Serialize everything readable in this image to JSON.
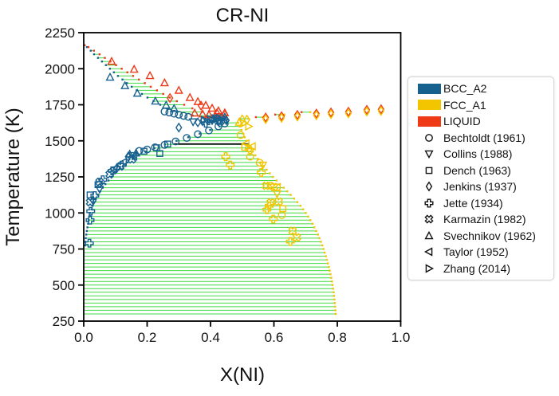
{
  "chart_data": {
    "type": "scatter",
    "title": "CR-NI",
    "xlabel": "X(NI)",
    "ylabel": "Temperature (K)",
    "xlim": [
      0.0,
      1.0
    ],
    "ylim": [
      250,
      2250
    ],
    "xticks": [
      0.0,
      0.2,
      0.4,
      0.6,
      0.8,
      1.0
    ],
    "yticks": [
      250,
      500,
      750,
      1000,
      1250,
      1500,
      1750,
      2000,
      2250
    ],
    "grid": false,
    "legend_position": "right",
    "colors": {
      "bcc": "#17618f",
      "fcc": "#f2c500",
      "liquid": "#ee3a16",
      "tie_line": "#3fdb40",
      "invariant": "#000000",
      "axis": "#000000"
    },
    "phases": [
      {
        "key": "bcc",
        "label": "BCC_A2"
      },
      {
        "key": "fcc",
        "label": "FCC_A1"
      },
      {
        "key": "liquid",
        "label": "LIQUID"
      }
    ],
    "boundaries": {
      "bcc_solidus": [
        [
          0.003,
          2163
        ],
        [
          0.01,
          2150
        ],
        [
          0.02,
          2130
        ],
        [
          0.03,
          2105
        ],
        [
          0.045,
          2075
        ],
        [
          0.06,
          2045
        ],
        [
          0.075,
          2015
        ],
        [
          0.09,
          1985
        ],
        [
          0.105,
          1955
        ],
        [
          0.125,
          1920
        ],
        [
          0.145,
          1885
        ],
        [
          0.17,
          1845
        ],
        [
          0.195,
          1808
        ],
        [
          0.22,
          1775
        ],
        [
          0.25,
          1740
        ],
        [
          0.28,
          1710
        ],
        [
          0.31,
          1690
        ],
        [
          0.35,
          1672
        ],
        [
          0.39,
          1658
        ],
        [
          0.43,
          1648
        ],
        [
          0.455,
          1643
        ]
      ],
      "liquidus_cr": [
        [
          0.003,
          2163
        ],
        [
          0.015,
          2150
        ],
        [
          0.03,
          2128
        ],
        [
          0.05,
          2100
        ],
        [
          0.07,
          2070
        ],
        [
          0.095,
          2035
        ],
        [
          0.12,
          2000
        ],
        [
          0.15,
          1958
        ],
        [
          0.18,
          1917
        ],
        [
          0.21,
          1877
        ],
        [
          0.245,
          1832
        ],
        [
          0.28,
          1790
        ],
        [
          0.315,
          1752
        ],
        [
          0.35,
          1718
        ],
        [
          0.385,
          1690
        ],
        [
          0.42,
          1668
        ],
        [
          0.45,
          1653
        ],
        [
          0.475,
          1647
        ]
      ],
      "bcc_solvus": [
        [
          0.0,
          300
        ],
        [
          0.0,
          500
        ],
        [
          0.001,
          650
        ],
        [
          0.003,
          750
        ],
        [
          0.006,
          820
        ],
        [
          0.01,
          880
        ],
        [
          0.015,
          940
        ],
        [
          0.02,
          1000
        ],
        [
          0.03,
          1060
        ],
        [
          0.04,
          1110
        ],
        [
          0.055,
          1160
        ],
        [
          0.07,
          1205
        ],
        [
          0.09,
          1255
        ],
        [
          0.11,
          1300
        ],
        [
          0.135,
          1345
        ],
        [
          0.16,
          1385
        ],
        [
          0.19,
          1420
        ],
        [
          0.225,
          1452
        ],
        [
          0.26,
          1478
        ],
        [
          0.3,
          1505
        ],
        [
          0.34,
          1532
        ],
        [
          0.38,
          1560
        ],
        [
          0.415,
          1588
        ],
        [
          0.44,
          1610
        ],
        [
          0.455,
          1630
        ],
        [
          0.46,
          1642
        ]
      ],
      "fcc_solvus": [
        [
          0.795,
          300
        ],
        [
          0.792,
          380
        ],
        [
          0.788,
          460
        ],
        [
          0.782,
          540
        ],
        [
          0.774,
          620
        ],
        [
          0.764,
          700
        ],
        [
          0.752,
          780
        ],
        [
          0.738,
          855
        ],
        [
          0.722,
          925
        ],
        [
          0.704,
          990
        ],
        [
          0.684,
          1050
        ],
        [
          0.662,
          1105
        ],
        [
          0.64,
          1155
        ],
        [
          0.617,
          1205
        ],
        [
          0.595,
          1255
        ],
        [
          0.573,
          1310
        ],
        [
          0.553,
          1365
        ],
        [
          0.535,
          1420
        ],
        [
          0.52,
          1475
        ],
        [
          0.508,
          1525
        ],
        [
          0.5,
          1565
        ],
        [
          0.492,
          1600
        ],
        [
          0.487,
          1625
        ],
        [
          0.483,
          1642
        ]
      ]
    },
    "tie_lines": {
      "bcc_fcc": {
        "t_min": 300,
        "t_max": 1625,
        "step": 25
      },
      "bcc_liquid": {
        "t_min": 1675,
        "t_max": 2150,
        "step": 25
      },
      "fcc_liquid": [
        [
          1653,
          0.492,
          0.52
        ],
        [
          1664,
          0.543,
          0.564
        ],
        [
          1682,
          0.604,
          0.633
        ],
        [
          1699,
          0.687,
          0.715
        ]
      ]
    },
    "invariant_line": {
      "T": 1478,
      "x1": 0.285,
      "x2": 0.52
    },
    "series": [
      {
        "name": "Bechtoldt (1961)",
        "marker": "circle",
        "points": [
          [
            0.255,
            1703,
            "bcc"
          ],
          [
            0.27,
            1696,
            "bcc"
          ],
          [
            0.285,
            1688,
            "bcc"
          ],
          [
            0.3,
            1681,
            "bcc"
          ],
          [
            0.315,
            1673,
            "bcc"
          ],
          [
            0.33,
            1666,
            "bcc"
          ],
          [
            0.175,
            1430,
            "bcc"
          ],
          [
            0.2,
            1440,
            "bcc"
          ],
          [
            0.225,
            1455,
            "bcc"
          ],
          [
            0.255,
            1472,
            "bcc"
          ],
          [
            0.29,
            1496,
            "bcc"
          ],
          [
            0.325,
            1520,
            "bcc"
          ],
          [
            0.36,
            1546,
            "bcc"
          ],
          [
            0.395,
            1572,
            "bcc"
          ],
          [
            0.425,
            1600,
            "bcc"
          ],
          [
            0.445,
            1620,
            "bcc"
          ],
          [
            0.405,
            1648,
            "bcc"
          ],
          [
            0.435,
            1658,
            "bcc"
          ],
          [
            0.495,
            1540,
            "fcc"
          ],
          [
            0.52,
            1448,
            "fcc"
          ],
          [
            0.525,
            1390,
            "fcc"
          ],
          [
            0.555,
            1348,
            "fcc"
          ],
          [
            0.59,
            1190,
            "fcc"
          ],
          [
            0.625,
            985,
            "fcc"
          ],
          [
            0.61,
            1178,
            "fcc"
          ]
        ]
      },
      {
        "name": "Collins (1988)",
        "marker": "triangle-down",
        "points": [
          [
            0.05,
            1165,
            "bcc"
          ],
          [
            0.155,
            1398,
            "bcc"
          ],
          [
            0.345,
            1632,
            "bcc"
          ],
          [
            0.405,
            1640,
            "bcc"
          ],
          [
            0.61,
            1134,
            "fcc"
          ],
          [
            0.565,
            1332,
            "fcc"
          ],
          [
            0.525,
            1425,
            "fcc"
          ]
        ]
      },
      {
        "name": "Dench (1963)",
        "marker": "square",
        "points": [
          [
            0.02,
            1125,
            "bcc"
          ],
          [
            0.045,
            1196,
            "bcc"
          ],
          [
            0.19,
            1428,
            "bcc"
          ],
          [
            0.23,
            1452,
            "bcc"
          ],
          [
            0.265,
            1478,
            "bcc"
          ],
          [
            0.24,
            1412,
            "bcc"
          ],
          [
            0.44,
            1645,
            "bcc"
          ],
          [
            0.508,
            1455,
            "fcc"
          ],
          [
            0.628,
            1030,
            "fcc"
          ]
        ]
      },
      {
        "name": "Jenkins (1937)",
        "marker": "diamond",
        "points": [
          [
            0.272,
            1797,
            "liquid"
          ],
          [
            0.37,
            1744,
            "liquid"
          ],
          [
            0.42,
            1690,
            "liquid"
          ],
          [
            0.445,
            1682,
            "liquid"
          ],
          [
            0.574,
            1662,
            "liquid"
          ],
          [
            0.624,
            1671,
            "liquid"
          ],
          [
            0.674,
            1680,
            "liquid"
          ],
          [
            0.734,
            1689,
            "liquid"
          ],
          [
            0.78,
            1697,
            "liquid"
          ],
          [
            0.835,
            1702,
            "liquid"
          ],
          [
            0.893,
            1715,
            "liquid"
          ],
          [
            0.938,
            1719,
            "liquid"
          ],
          [
            0.5,
            1649,
            "fcc"
          ],
          [
            0.515,
            1647,
            "fcc"
          ],
          [
            0.574,
            1650,
            "fcc"
          ],
          [
            0.624,
            1659,
            "fcc"
          ],
          [
            0.674,
            1668,
            "fcc"
          ],
          [
            0.734,
            1677,
            "fcc"
          ],
          [
            0.78,
            1685,
            "fcc"
          ],
          [
            0.835,
            1690,
            "fcc"
          ],
          [
            0.893,
            1703,
            "fcc"
          ],
          [
            0.938,
            1707,
            "fcc"
          ],
          [
            0.36,
            1628,
            "bcc"
          ],
          [
            0.375,
            1636,
            "bcc"
          ],
          [
            0.39,
            1643,
            "bcc"
          ],
          [
            0.405,
            1652,
            "bcc"
          ],
          [
            0.42,
            1659,
            "bcc"
          ],
          [
            0.435,
            1663,
            "bcc"
          ],
          [
            0.45,
            1642,
            "bcc"
          ],
          [
            0.3,
            1592,
            "bcc"
          ],
          [
            0.14,
            1390,
            "bcc"
          ],
          [
            0.105,
            1312,
            "bcc"
          ],
          [
            0.03,
            1085,
            "bcc"
          ]
        ]
      },
      {
        "name": "Jette (1934)",
        "marker": "plus",
        "points": [
          [
            0.018,
            790,
            "bcc"
          ],
          [
            0.02,
            950,
            "bcc"
          ],
          [
            0.022,
            1012,
            "bcc"
          ],
          [
            0.035,
            1120,
            "bcc"
          ],
          [
            0.06,
            1230,
            "bcc"
          ],
          [
            0.09,
            1292,
            "bcc"
          ],
          [
            0.12,
            1332,
            "bcc"
          ],
          [
            0.385,
            1622,
            "bcc"
          ],
          [
            0.448,
            1390,
            "fcc"
          ],
          [
            0.462,
            1332,
            "fcc"
          ],
          [
            0.56,
            1280,
            "fcc"
          ],
          [
            0.585,
            1050,
            "fcc"
          ],
          [
            0.578,
            1023,
            "fcc"
          ],
          [
            0.598,
            957,
            "fcc"
          ],
          [
            0.652,
            802,
            "fcc"
          ]
        ]
      },
      {
        "name": "Karmazin (1982)",
        "marker": "x",
        "points": [
          [
            0.02,
            1075,
            "bcc"
          ],
          [
            0.05,
            1215,
            "bcc"
          ],
          [
            0.082,
            1268,
            "bcc"
          ],
          [
            0.115,
            1322,
            "bcc"
          ],
          [
            0.152,
            1372,
            "bcc"
          ],
          [
            0.43,
            1632,
            "bcc"
          ],
          [
            0.575,
            1188,
            "fcc"
          ],
          [
            0.6,
            1180,
            "fcc"
          ],
          [
            0.59,
            1072,
            "fcc"
          ],
          [
            0.615,
            1078,
            "fcc"
          ],
          [
            0.659,
            875,
            "fcc"
          ],
          [
            0.672,
            830,
            "fcc"
          ]
        ]
      },
      {
        "name": "Svechnikov (1962)",
        "marker": "triangle-up",
        "points": [
          [
            0.088,
            2051,
            "liquid"
          ],
          [
            0.159,
            1996,
            "liquid"
          ],
          [
            0.209,
            1952,
            "liquid"
          ],
          [
            0.255,
            1902,
            "liquid"
          ],
          [
            0.3,
            1850,
            "liquid"
          ],
          [
            0.335,
            1800,
            "liquid"
          ],
          [
            0.36,
            1772,
            "liquid"
          ],
          [
            0.385,
            1746,
            "liquid"
          ],
          [
            0.405,
            1726,
            "liquid"
          ],
          [
            0.425,
            1708,
            "liquid"
          ],
          [
            0.445,
            1694,
            "liquid"
          ],
          [
            0.35,
            1692,
            "liquid"
          ],
          [
            0.375,
            1686,
            "liquid"
          ],
          [
            0.395,
            1681,
            "liquid"
          ],
          [
            0.083,
            1941,
            "bcc"
          ],
          [
            0.13,
            1882,
            "bcc"
          ],
          [
            0.169,
            1830,
            "bcc"
          ],
          [
            0.226,
            1775,
            "bcc"
          ],
          [
            0.26,
            1747,
            "bcc"
          ],
          [
            0.285,
            1724,
            "bcc"
          ],
          [
            0.145,
            1408,
            "bcc"
          ],
          [
            0.165,
            1415,
            "bcc"
          ],
          [
            0.41,
            1655,
            "bcc"
          ],
          [
            0.445,
            1665,
            "bcc"
          ],
          [
            0.49,
            1628,
            "fcc"
          ]
        ]
      },
      {
        "name": "Taylor (1952)",
        "marker": "triangle-left",
        "points": [
          [
            0.095,
            1305,
            "bcc"
          ],
          [
            0.125,
            1352,
            "bcc"
          ],
          [
            0.158,
            1392,
            "bcc"
          ],
          [
            0.415,
            1638,
            "bcc"
          ],
          [
            0.512,
            1482,
            "fcc"
          ],
          [
            0.532,
            1462,
            "fcc"
          ]
        ]
      },
      {
        "name": "Zhang (2014)",
        "marker": "triangle-right",
        "points": [
          [
            0.38,
            1645,
            "bcc"
          ],
          [
            0.4,
            1650,
            "bcc"
          ],
          [
            0.428,
            1656,
            "bcc"
          ],
          [
            0.52,
            1600,
            "fcc"
          ],
          [
            0.505,
            1622,
            "fcc"
          ]
        ]
      }
    ]
  }
}
